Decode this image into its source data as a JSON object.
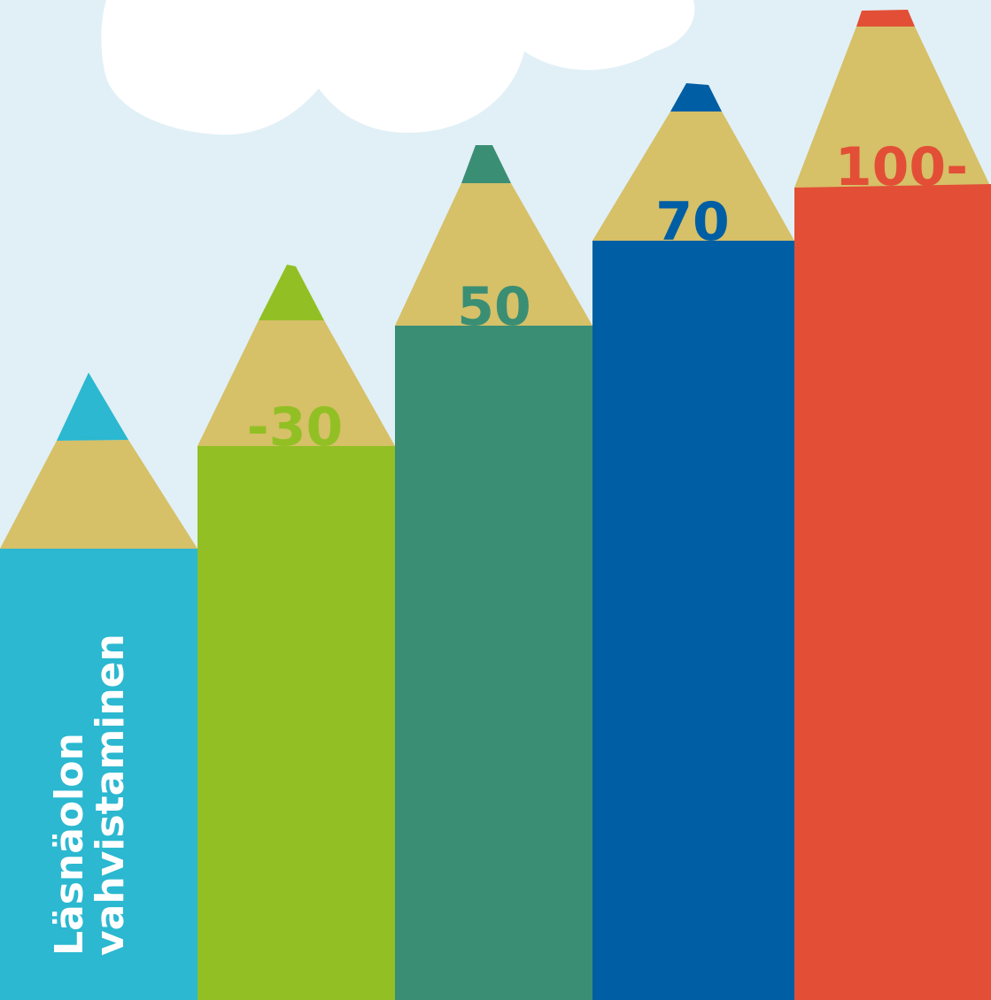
{
  "colors": {
    "sky": "#e1f0f6",
    "cloud": "#ffffff",
    "wood": "#d6c068",
    "pencil_1": "#2bb8d0",
    "pencil_2": "#92c024",
    "pencil_3": "#3a8e74",
    "pencil_4": "#005ea4",
    "pencil_5": "#e24f36",
    "title_text": "#ffffff"
  },
  "title": {
    "line1": "Läsnäolon",
    "line2": "vahvistaminen"
  },
  "pencils": [
    {
      "name": "pencil-1",
      "color": "pencil_1",
      "label": ""
    },
    {
      "name": "pencil-2",
      "color": "pencil_2",
      "label": "-30"
    },
    {
      "name": "pencil-3",
      "color": "pencil_3",
      "label": "50"
    },
    {
      "name": "pencil-4",
      "color": "pencil_4",
      "label": "70"
    },
    {
      "name": "pencil-5",
      "color": "pencil_5",
      "label": "100-"
    }
  ]
}
